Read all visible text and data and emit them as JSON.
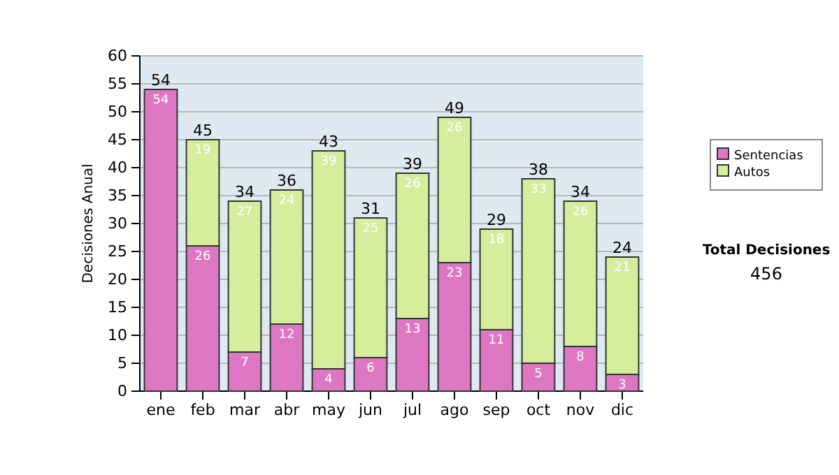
{
  "chart_data": {
    "type": "bar",
    "stacked": true,
    "ylabel": "Decisiones Anual",
    "categories": [
      "ene",
      "feb",
      "mar",
      "abr",
      "may",
      "jun",
      "jul",
      "ago",
      "sep",
      "oct",
      "nov",
      "dic"
    ],
    "series": [
      {
        "name": "Sentencias",
        "color": "#dd77c3",
        "values": [
          54,
          26,
          7,
          12,
          4,
          6,
          13,
          23,
          11,
          5,
          8,
          3
        ],
        "value_labels": [
          "54",
          "26",
          "7",
          "12",
          "4",
          "6",
          "13",
          "23",
          "11",
          "5",
          "8",
          "3"
        ]
      },
      {
        "name": "Autos",
        "color": "#d4ee9c",
        "values": [
          0,
          19,
          27,
          24,
          39,
          25,
          26,
          26,
          18,
          33,
          26,
          21
        ],
        "value_labels": [
          null,
          "19",
          "27",
          "24",
          "39",
          "25",
          "26",
          "26",
          "18",
          "33",
          "26",
          "21"
        ]
      }
    ],
    "totals": [
      "54",
      "45",
      "34",
      "36",
      "43",
      "31",
      "39",
      "49",
      "29",
      "38",
      "34",
      "24"
    ],
    "ylim": [
      0,
      60
    ],
    "yticks": [
      0,
      5,
      10,
      15,
      20,
      25,
      30,
      35,
      40,
      45,
      50,
      55,
      60
    ],
    "grid": "y",
    "legend": "right",
    "annotations": [
      "Total Decisiones",
      "456"
    ]
  }
}
